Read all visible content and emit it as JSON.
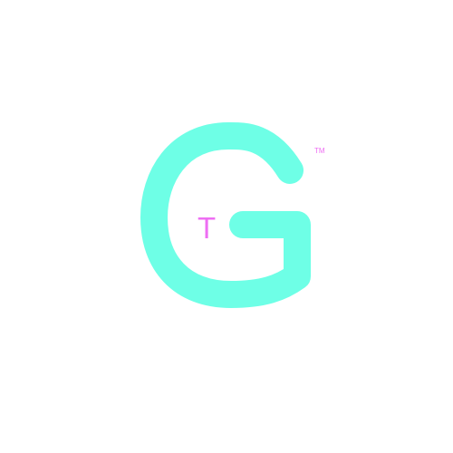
{
  "logo": {
    "monogram_icon": "letter-g-logo-icon",
    "colors": {
      "monogram": "#6effe6",
      "accent": "#ee6ef3",
      "background": "#ffffff"
    },
    "inner_letter": "T",
    "trademark": "TM"
  }
}
